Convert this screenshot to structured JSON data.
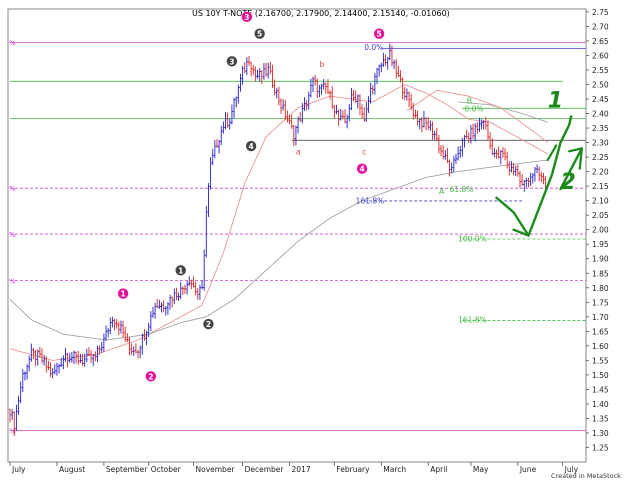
{
  "chart_data": {
    "type": "candlestick",
    "title": "US 10Y T-NOTE (2.16700, 2.17900, 2.14400, 2.15140, -0.01060)",
    "watermark": "Created in MetaStock",
    "ylim": [
      1.2,
      2.76
    ],
    "y_ticks": [
      1.25,
      1.3,
      1.35,
      1.4,
      1.45,
      1.5,
      1.55,
      1.6,
      1.65,
      1.7,
      1.75,
      1.8,
      1.85,
      1.9,
      1.95,
      2.0,
      2.05,
      2.1,
      2.15,
      2.2,
      2.25,
      2.3,
      2.35,
      2.4,
      2.45,
      2.5,
      2.55,
      2.6,
      2.65,
      2.7,
      2.75
    ],
    "x_months": [
      "July",
      "August",
      "September",
      "October",
      "November",
      "December",
      "2017",
      "February",
      "March",
      "April",
      "May",
      "June",
      "July"
    ],
    "x_month_index": [
      0,
      22,
      44,
      65,
      86,
      109,
      131,
      152,
      174,
      196,
      216,
      238,
      259
    ],
    "bars_total": 270,
    "price_path_points": [
      [
        0,
        1.38
      ],
      [
        2,
        1.33
      ],
      [
        6,
        1.5
      ],
      [
        10,
        1.57
      ],
      [
        14,
        1.56
      ],
      [
        20,
        1.5
      ],
      [
        26,
        1.57
      ],
      [
        34,
        1.55
      ],
      [
        40,
        1.56
      ],
      [
        44,
        1.62
      ],
      [
        48,
        1.7
      ],
      [
        52,
        1.66
      ],
      [
        56,
        1.59
      ],
      [
        60,
        1.59
      ],
      [
        64,
        1.66
      ],
      [
        68,
        1.74
      ],
      [
        72,
        1.74
      ],
      [
        76,
        1.77
      ],
      [
        80,
        1.79
      ],
      [
        84,
        1.83
      ],
      [
        88,
        1.78
      ],
      [
        90,
        1.79
      ],
      [
        92,
        2.06
      ],
      [
        94,
        2.22
      ],
      [
        97,
        2.3
      ],
      [
        100,
        2.36
      ],
      [
        103,
        2.38
      ],
      [
        106,
        2.46
      ],
      [
        109,
        2.54
      ],
      [
        112,
        2.59
      ],
      [
        115,
        2.53
      ],
      [
        118,
        2.53
      ],
      [
        121,
        2.55
      ],
      [
        124,
        2.49
      ],
      [
        127,
        2.43
      ],
      [
        130,
        2.38
      ],
      [
        133,
        2.33
      ],
      [
        136,
        2.39
      ],
      [
        139,
        2.44
      ],
      [
        142,
        2.51
      ],
      [
        145,
        2.48
      ],
      [
        148,
        2.49
      ],
      [
        151,
        2.44
      ],
      [
        154,
        2.38
      ],
      [
        157,
        2.37
      ],
      [
        160,
        2.45
      ],
      [
        163,
        2.46
      ],
      [
        166,
        2.37
      ],
      [
        169,
        2.48
      ],
      [
        172,
        2.54
      ],
      [
        175,
        2.58
      ],
      [
        178,
        2.6
      ],
      [
        181,
        2.54
      ],
      [
        184,
        2.49
      ],
      [
        187,
        2.44
      ],
      [
        190,
        2.39
      ],
      [
        193,
        2.37
      ],
      [
        196,
        2.36
      ],
      [
        199,
        2.33
      ],
      [
        202,
        2.27
      ],
      [
        205,
        2.23
      ],
      [
        207,
        2.2
      ],
      [
        210,
        2.27
      ],
      [
        213,
        2.31
      ],
      [
        216,
        2.33
      ],
      [
        219,
        2.35
      ],
      [
        222,
        2.38
      ],
      [
        225,
        2.29
      ],
      [
        228,
        2.25
      ],
      [
        231,
        2.26
      ],
      [
        234,
        2.21
      ],
      [
        237,
        2.21
      ],
      [
        240,
        2.15
      ],
      [
        243,
        2.18
      ],
      [
        246,
        2.2
      ],
      [
        249,
        2.18
      ],
      [
        251,
        2.15
      ]
    ],
    "moving_averages": [
      {
        "name": "MA short",
        "color": "#e88a8a",
        "points": [
          [
            0,
            1.59
          ],
          [
            20,
            1.55
          ],
          [
            40,
            1.57
          ],
          [
            60,
            1.62
          ],
          [
            80,
            1.7
          ],
          [
            90,
            1.74
          ],
          [
            100,
            1.92
          ],
          [
            110,
            2.16
          ],
          [
            120,
            2.32
          ],
          [
            135,
            2.42
          ],
          [
            150,
            2.46
          ],
          [
            170,
            2.44
          ],
          [
            185,
            2.5
          ],
          [
            195,
            2.47
          ],
          [
            205,
            2.43
          ],
          [
            215,
            2.38
          ],
          [
            225,
            2.37
          ],
          [
            235,
            2.33
          ],
          [
            245,
            2.29
          ],
          [
            252,
            2.26
          ]
        ]
      },
      {
        "name": "MA long",
        "color": "#9a9a9a",
        "points": [
          [
            0,
            1.76
          ],
          [
            10,
            1.69
          ],
          [
            25,
            1.64
          ],
          [
            45,
            1.62
          ],
          [
            65,
            1.64
          ],
          [
            80,
            1.68
          ],
          [
            92,
            1.7
          ],
          [
            105,
            1.76
          ],
          [
            120,
            1.86
          ],
          [
            135,
            1.96
          ],
          [
            150,
            2.04
          ],
          [
            165,
            2.1
          ],
          [
            180,
            2.14
          ],
          [
            195,
            2.18
          ],
          [
            210,
            2.2
          ],
          [
            230,
            2.22
          ],
          [
            252,
            2.24
          ]
        ]
      },
      {
        "name": "MA mid (right)",
        "color": "#9a9a9a",
        "points": [
          [
            210,
            2.44
          ],
          [
            225,
            2.43
          ],
          [
            240,
            2.4
          ],
          [
            252,
            2.37
          ]
        ]
      },
      {
        "name": "MA mid2 (right)",
        "color": "#e88a8a",
        "points": [
          [
            186,
            2.41
          ],
          [
            200,
            2.48
          ],
          [
            215,
            2.46
          ],
          [
            230,
            2.42
          ],
          [
            245,
            2.34
          ],
          [
            252,
            2.3
          ]
        ]
      }
    ],
    "horizontal_lines": [
      {
        "y": 2.645,
        "x_from": 0,
        "x_to": 270,
        "color": "#cc44cc",
        "style": "solid"
      },
      {
        "y": 2.624,
        "x_from": 174,
        "x_to": 270,
        "color": "#4444cc",
        "style": "solid"
      },
      {
        "y": 2.511,
        "x_from": 0,
        "x_to": 259,
        "color": "#44bb44",
        "style": "solid"
      },
      {
        "y": 2.418,
        "x_from": 212,
        "x_to": 270,
        "color": "#44bb44",
        "style": "solid"
      },
      {
        "y": 2.383,
        "x_from": 0,
        "x_to": 270,
        "color": "#44bb44",
        "style": "solid"
      },
      {
        "y": 2.308,
        "x_from": 132,
        "x_to": 270,
        "color": "#333333",
        "style": "solid"
      },
      {
        "y": 2.143,
        "x_from": 0,
        "x_to": 270,
        "color": "#cc44cc",
        "style": "dashed"
      },
      {
        "y": 2.099,
        "x_from": 166,
        "x_to": 240,
        "color": "#4444cc",
        "style": "dashed"
      },
      {
        "y": 1.985,
        "x_from": 0,
        "x_to": 270,
        "color": "#cc44cc",
        "style": "dashed"
      },
      {
        "y": 1.968,
        "x_from": 212,
        "x_to": 270,
        "color": "#44bb44",
        "style": "dashed"
      },
      {
        "y": 1.825,
        "x_from": 0,
        "x_to": 270,
        "color": "#cc44cc",
        "style": "dashed"
      },
      {
        "y": 1.687,
        "x_from": 212,
        "x_to": 270,
        "color": "#44bb44",
        "style": "dashed"
      },
      {
        "y": 1.308,
        "x_from": 0,
        "x_to": 270,
        "color": "#cc44cc",
        "style": "solid"
      }
    ],
    "fib_labels": [
      {
        "text": "0.0%",
        "color": "#4444cc",
        "bar": 166,
        "y": 2.63
      },
      {
        "text": "0.0%",
        "color": "#44bb44",
        "bar": 213,
        "y": 2.418
      },
      {
        "text": "61.8%",
        "color": "#44bb44",
        "bar": 206,
        "y": 2.14
      },
      {
        "text": "161.8%",
        "color": "#4444cc",
        "bar": 162,
        "y": 2.1
      },
      {
        "text": "100.0%",
        "color": "#44bb44",
        "bar": 210,
        "y": 1.97
      },
      {
        "text": "161.8%",
        "color": "#44bb44",
        "bar": 210,
        "y": 1.69
      }
    ],
    "wave_labels": [
      {
        "text": "1",
        "bar": 53,
        "y": 1.78,
        "fill": "#e6119b"
      },
      {
        "text": "2",
        "bar": 66,
        "y": 1.495,
        "fill": "#e6119b"
      },
      {
        "text": "1",
        "bar": 80,
        "y": 1.86,
        "fill": "#444444"
      },
      {
        "text": "2",
        "bar": 93,
        "y": 1.675,
        "fill": "#444444"
      },
      {
        "text": "3",
        "bar": 104,
        "y": 2.58,
        "fill": "#444444"
      },
      {
        "text": "4",
        "bar": 113,
        "y": 2.288,
        "fill": "#444444"
      },
      {
        "text": "3",
        "bar": 111,
        "y": 2.733,
        "fill": "#e6119b"
      },
      {
        "text": "5",
        "bar": 117,
        "y": 2.675,
        "fill": "#444444"
      },
      {
        "text": "5",
        "bar": 173,
        "y": 2.675,
        "fill": "#e6119b"
      },
      {
        "text": "4",
        "bar": 165,
        "y": 2.21,
        "fill": "#e6119b"
      }
    ],
    "letter_labels": [
      {
        "text": "b",
        "bar": 145,
        "y": 2.57,
        "color": "#e05050"
      },
      {
        "text": "a",
        "bar": 134,
        "y": 2.27,
        "color": "#e05050"
      },
      {
        "text": "c",
        "bar": 165,
        "y": 2.27,
        "color": "#e05050"
      },
      {
        "text": "B",
        "bar": 214,
        "y": 2.445,
        "color": "#44bb44"
      },
      {
        "text": "A",
        "bar": 201,
        "y": 2.133,
        "color": "#44bb44"
      }
    ],
    "left_percent_markers": [
      2.645,
      2.143,
      1.985,
      1.825,
      1.308
    ],
    "hand_drawn": [
      {
        "text": "1",
        "bar": 252,
        "y": 2.42,
        "color": "#1a8a1a"
      },
      {
        "text": "2",
        "bar": 258,
        "y": 2.14,
        "color": "#1a8a1a"
      }
    ]
  }
}
